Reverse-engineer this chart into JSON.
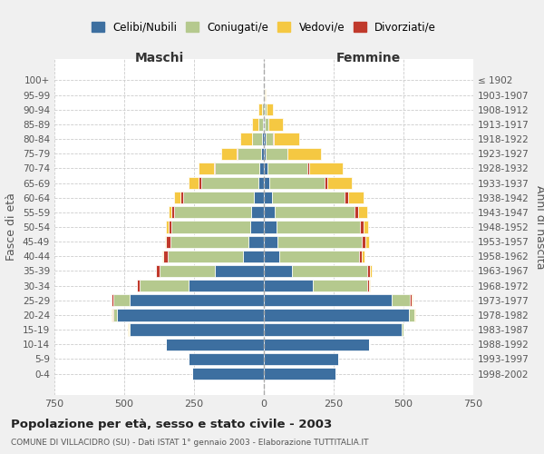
{
  "age_groups_bottom_to_top": [
    "0-4",
    "5-9",
    "10-14",
    "15-19",
    "20-24",
    "25-29",
    "30-34",
    "35-39",
    "40-44",
    "45-49",
    "50-54",
    "55-59",
    "60-64",
    "65-69",
    "70-74",
    "75-79",
    "80-84",
    "85-89",
    "90-94",
    "95-99",
    "100+"
  ],
  "birth_years_bottom_to_top": [
    "1998-2002",
    "1993-1997",
    "1988-1992",
    "1983-1987",
    "1978-1982",
    "1973-1977",
    "1968-1972",
    "1963-1967",
    "1958-1962",
    "1953-1957",
    "1948-1952",
    "1943-1947",
    "1938-1942",
    "1933-1937",
    "1928-1932",
    "1923-1927",
    "1918-1922",
    "1913-1917",
    "1908-1912",
    "1903-1907",
    "≤ 1902"
  ],
  "male": {
    "celibi": [
      255,
      270,
      350,
      480,
      525,
      480,
      270,
      175,
      75,
      55,
      50,
      45,
      35,
      20,
      15,
      10,
      5,
      2,
      0,
      0,
      0
    ],
    "coniugati": [
      0,
      0,
      2,
      5,
      15,
      60,
      175,
      200,
      270,
      280,
      280,
      275,
      255,
      205,
      160,
      85,
      38,
      18,
      8,
      2,
      0
    ],
    "vedovi": [
      0,
      0,
      0,
      2,
      2,
      2,
      2,
      2,
      5,
      5,
      8,
      10,
      20,
      35,
      55,
      55,
      40,
      22,
      10,
      2,
      0
    ],
    "divorziati": [
      0,
      0,
      0,
      0,
      2,
      5,
      8,
      10,
      15,
      15,
      12,
      12,
      10,
      8,
      5,
      2,
      0,
      0,
      0,
      0,
      0
    ]
  },
  "female": {
    "nubili": [
      255,
      265,
      375,
      495,
      518,
      458,
      175,
      100,
      55,
      50,
      45,
      40,
      30,
      18,
      12,
      8,
      5,
      2,
      2,
      0,
      0
    ],
    "coniugate": [
      0,
      0,
      2,
      5,
      20,
      65,
      195,
      270,
      285,
      300,
      300,
      285,
      260,
      200,
      145,
      75,
      28,
      15,
      8,
      2,
      0
    ],
    "vedove": [
      0,
      0,
      0,
      0,
      2,
      3,
      3,
      5,
      8,
      10,
      15,
      32,
      55,
      90,
      120,
      120,
      90,
      52,
      22,
      5,
      0
    ],
    "divorziate": [
      0,
      0,
      0,
      0,
      2,
      5,
      8,
      10,
      12,
      15,
      12,
      12,
      12,
      8,
      5,
      2,
      2,
      0,
      0,
      0,
      0
    ]
  },
  "colors": {
    "celibi": "#3d6fa0",
    "coniugati": "#b5c98e",
    "vedovi": "#f5c842",
    "divorziati": "#c0392b"
  },
  "xlim": 750,
  "title": "Popolazione per età, sesso e stato civile - 2003",
  "subtitle": "COMUNE DI VILLACIDRO (SU) - Dati ISTAT 1° gennaio 2003 - Elaborazione TUTTITALIA.IT",
  "xlabel_left": "Maschi",
  "xlabel_right": "Femmine",
  "ylabel_left": "Fasce di età",
  "ylabel_right": "Anni di nascita",
  "legend_labels": [
    "Celibi/Nubili",
    "Coniugati/e",
    "Vedovi/e",
    "Divorziati/e"
  ],
  "bg_color": "#f0f0f0",
  "plot_bg": "#ffffff",
  "grid_color": "#cccccc"
}
